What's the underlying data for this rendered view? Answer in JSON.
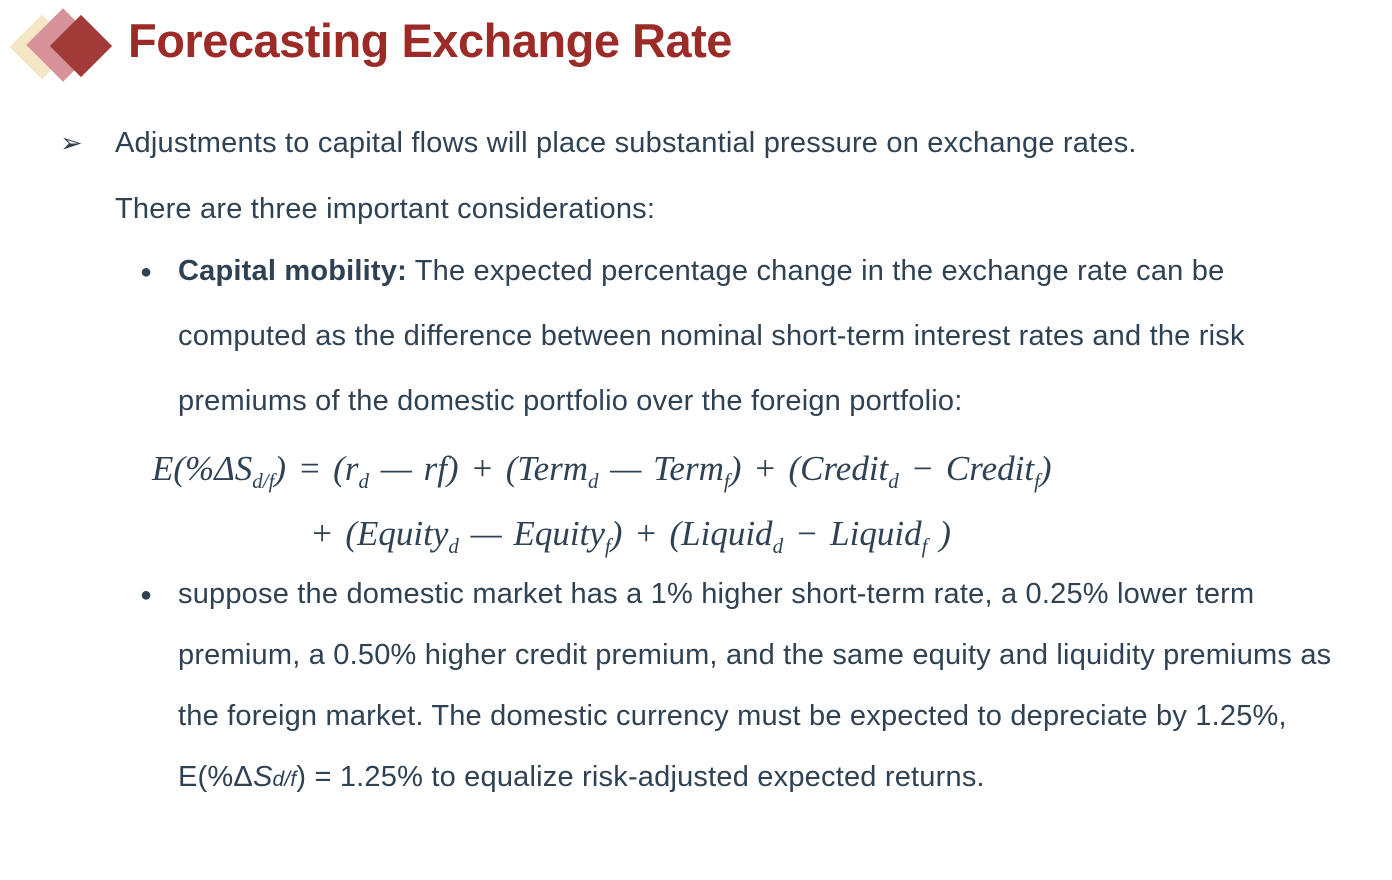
{
  "slide": {
    "title": "Forecasting Exchange Rate"
  },
  "colors": {
    "title_maroon": "#9C2B28",
    "body_text": "#2F4254",
    "logo_diamond_back": "#F5E7C6",
    "logo_diamond_middle": "#D79399",
    "logo_diamond_front": "#A23B38"
  },
  "bullets": {
    "main": {
      "marker": "➢",
      "line1": "Adjustments to capital flows will place substantial pressure on exchange rates.",
      "line2": "There are three important considerations:"
    },
    "capital_mobility": {
      "marker": "●",
      "lead": "Capital mobility:",
      "body": " The expected percentage change in the exchange rate can be computed as the difference between nominal short-term interest rates and the risk premiums of the domestic portfolio over the foreign portfolio:"
    },
    "example": {
      "marker": "●",
      "part1": "suppose the domestic market has a 1% higher short-term rate, a 0.25% lower term premium, a 0.50% higher credit premium, and the same equity and liquidity premiums as the foreign market. The domestic currency must be expected to depreciate by 1.25%, E(%Δ",
      "var": "S",
      "var_sub": "d/f",
      "part2": ") = 1.25% to equalize risk-adjusted expected returns."
    }
  },
  "formula": {
    "line1": {
      "p1": "E(%ΔS",
      "s1": "d/f",
      "p2": ") =  (r",
      "s2": "d",
      "p3": " — rf) +  (Term",
      "s3": "d",
      "p4": " — Term",
      "s4": "f",
      "p5": ") +  (Credit",
      "s5": "d",
      "p6": " −  Credit",
      "s6": "f",
      "p7": ")"
    },
    "line2": {
      "p1": "+ (Equity",
      "s1": "d",
      "p2": " — Equity",
      "s2": "f",
      "p3": ") +  (Liquid",
      "s3": "d",
      "p4": " −  Liquid",
      "s4": "f",
      "p5": " )"
    }
  }
}
